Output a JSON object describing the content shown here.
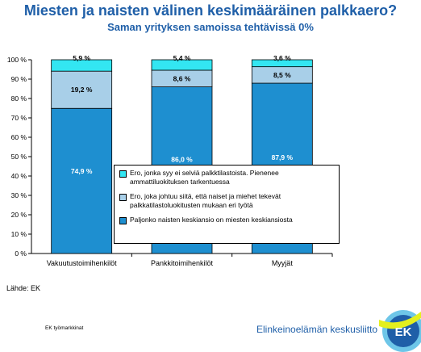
{
  "title": "Miesten ja naisten välinen keskimääräinen palkkaero?",
  "subtitle": "Saman yrityksen samoissa tehtävissä 0%",
  "source": "Lähde: EK",
  "footer_left": "EK työmarkkinat",
  "brand": "Elinkeinoelämän keskusliitto",
  "logo_text": "EK",
  "colors": {
    "base": "#1e8fd0",
    "middle": "#a8cfe8",
    "top": "#33e6f2",
    "title": "#1f5fa8"
  },
  "chart_data": {
    "type": "bar",
    "stacked": true,
    "categories": [
      "Vakuutustoimihenkilöt",
      "Pankkitoimihenkilöt",
      "Myyjät"
    ],
    "series": [
      {
        "name": "Paljonko naisten keskiansio on miesten keskiansiosta",
        "values": [
          74.9,
          86.0,
          87.9
        ],
        "labels": [
          "74,9 %",
          "86,0 %",
          "87,9 %"
        ]
      },
      {
        "name": "Ero, joka johtuu siitä, että naiset ja miehet tekevät palkkatilastoluokitusten mukaan eri työtä",
        "values": [
          19.2,
          8.6,
          8.5
        ],
        "labels": [
          "19,2 %",
          "8,6 %",
          "8,5 %"
        ]
      },
      {
        "name": "Ero, jonka syy ei selviä palkktilastoista. Pienenee ammattiluokituksen tarkentuessa",
        "values": [
          5.9,
          5.4,
          3.6
        ],
        "labels": [
          "5,9 %",
          "5,4 %",
          "3,6 %"
        ]
      }
    ],
    "ylim": [
      0,
      100
    ],
    "yticks": [
      "0 %",
      "10 %",
      "20 %",
      "30 %",
      "40 %",
      "50 %",
      "60 %",
      "70 %",
      "80 %",
      "90 %",
      "100 %"
    ],
    "grid": false,
    "legend_position": "center"
  }
}
